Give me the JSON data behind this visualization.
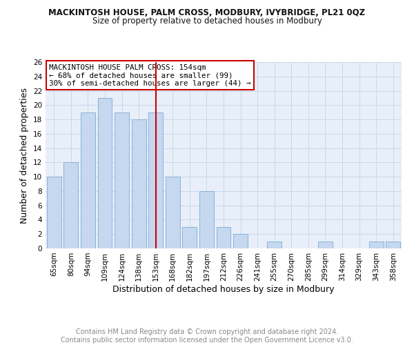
{
  "title": "MACKINTOSH HOUSE, PALM CROSS, MODBURY, IVYBRIDGE, PL21 0QZ",
  "subtitle": "Size of property relative to detached houses in Modbury",
  "xlabel": "Distribution of detached houses by size in Modbury",
  "ylabel": "Number of detached properties",
  "categories": [
    "65sqm",
    "80sqm",
    "94sqm",
    "109sqm",
    "124sqm",
    "138sqm",
    "153sqm",
    "168sqm",
    "182sqm",
    "197sqm",
    "212sqm",
    "226sqm",
    "241sqm",
    "255sqm",
    "270sqm",
    "285sqm",
    "299sqm",
    "314sqm",
    "329sqm",
    "343sqm",
    "358sqm"
  ],
  "values": [
    10,
    12,
    19,
    21,
    19,
    18,
    19,
    10,
    3,
    8,
    3,
    2,
    0,
    1,
    0,
    0,
    1,
    0,
    0,
    1,
    1
  ],
  "bar_color": "#c5d8f0",
  "bar_edgecolor": "#7baad4",
  "vline_x_index": 6,
  "vline_color": "#cc0000",
  "annotation_text": "MACKINTOSH HOUSE PALM CROSS: 154sqm\n← 68% of detached houses are smaller (99)\n30% of semi-detached houses are larger (44) →",
  "annotation_box_edgecolor": "#cc0000",
  "annotation_box_facecolor": "#ffffff",
  "ylim": [
    0,
    26
  ],
  "yticks": [
    0,
    2,
    4,
    6,
    8,
    10,
    12,
    14,
    16,
    18,
    20,
    22,
    24,
    26
  ],
  "grid_color": "#c8d8ec",
  "bg_color": "#e8eff8",
  "footer_line1": "Contains HM Land Registry data © Crown copyright and database right 2024.",
  "footer_line2": "Contains public sector information licensed under the Open Government Licence v3.0.",
  "title_fontsize": 8.5,
  "subtitle_fontsize": 8.5,
  "axis_label_fontsize": 9,
  "tick_fontsize": 7.5,
  "annotation_fontsize": 7.8,
  "footer_fontsize": 7
}
